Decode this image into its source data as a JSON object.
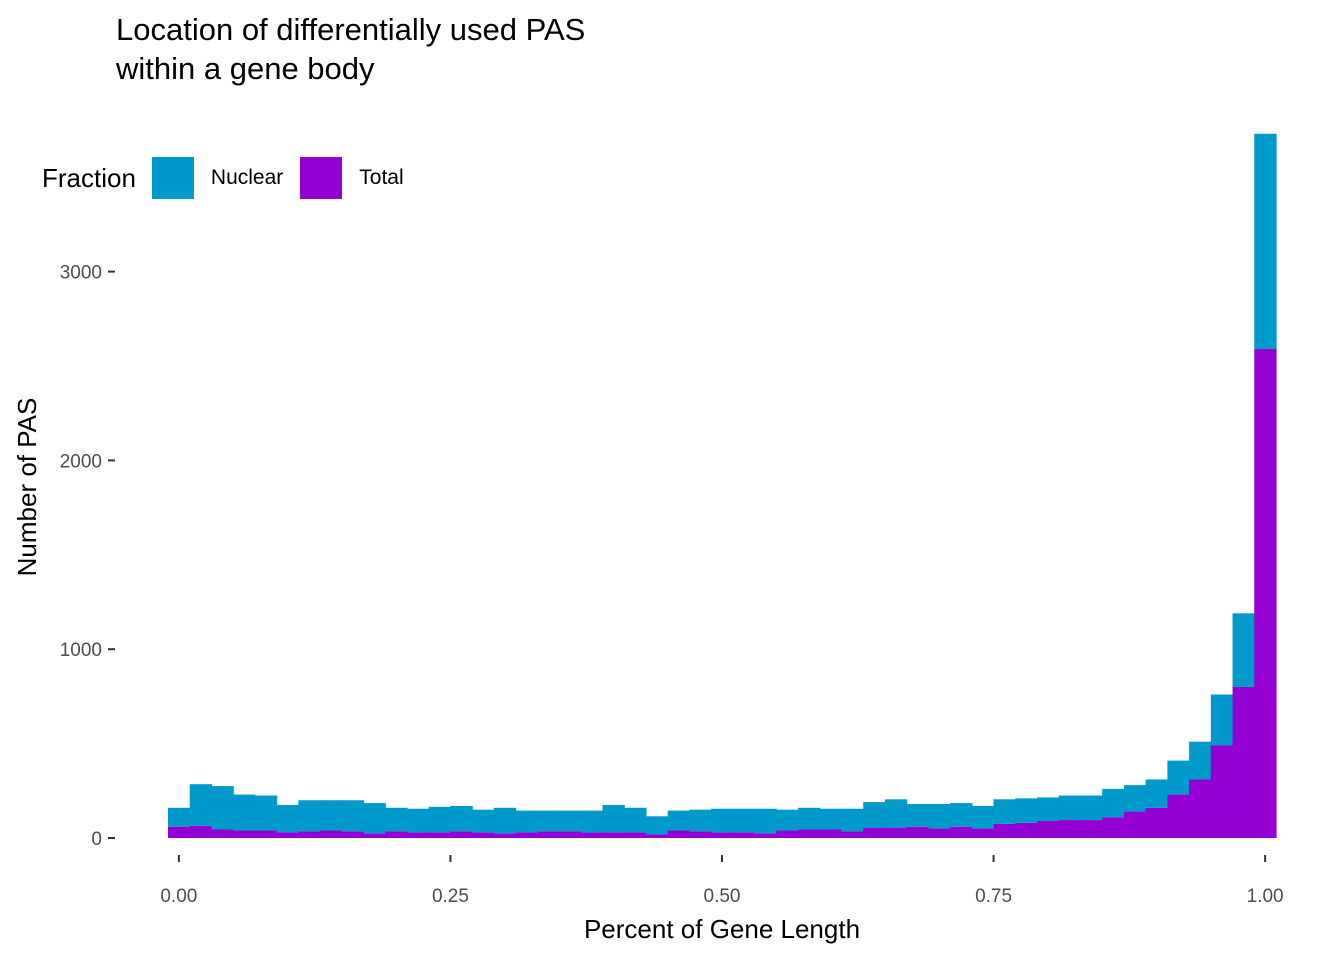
{
  "chart_data": {
    "type": "bar",
    "subtype": "stacked-histogram",
    "title": "Location of differentially used PAS\nwithin a gene body",
    "xlabel": "Percent of Gene Length",
    "ylabel": "Number of PAS",
    "xlim": [
      -0.01,
      1.01
    ],
    "ylim": [
      0,
      3750
    ],
    "xticks": [
      0,
      0.25,
      0.5,
      0.75,
      1
    ],
    "xtick_labels": [
      "0.00",
      "0.25",
      "0.50",
      "0.75",
      "1.00"
    ],
    "yticks": [
      0,
      1000,
      2000,
      3000
    ],
    "ytick_labels": [
      "0",
      "1000",
      "2000",
      "3000"
    ],
    "bin_start": -0.01,
    "bin_width": 0.02,
    "grid": false,
    "legend": {
      "title": "Fraction",
      "placement": "top-left",
      "items": [
        {
          "label": "Nuclear",
          "color": "#0099CC"
        },
        {
          "label": "Total",
          "color": "#9400D3"
        }
      ]
    },
    "series": [
      {
        "name": "Total",
        "color": "#9400D3",
        "values": [
          60,
          65,
          45,
          40,
          40,
          30,
          35,
          40,
          35,
          25,
          35,
          30,
          30,
          35,
          30,
          25,
          30,
          35,
          35,
          30,
          30,
          30,
          20,
          40,
          35,
          30,
          30,
          25,
          40,
          45,
          45,
          35,
          55,
          55,
          60,
          50,
          60,
          50,
          75,
          80,
          90,
          95,
          95,
          110,
          140,
          160,
          230,
          310,
          490,
          800,
          2590
        ]
      },
      {
        "name": "Nuclear",
        "color": "#0099CC",
        "values": [
          100,
          220,
          230,
          190,
          185,
          145,
          165,
          160,
          165,
          160,
          125,
          125,
          135,
          135,
          120,
          135,
          115,
          110,
          110,
          115,
          145,
          130,
          95,
          105,
          115,
          125,
          125,
          130,
          110,
          115,
          110,
          120,
          135,
          150,
          120,
          130,
          125,
          120,
          130,
          130,
          125,
          130,
          130,
          150,
          140,
          150,
          180,
          200,
          270,
          390,
          1140
        ]
      }
    ]
  }
}
